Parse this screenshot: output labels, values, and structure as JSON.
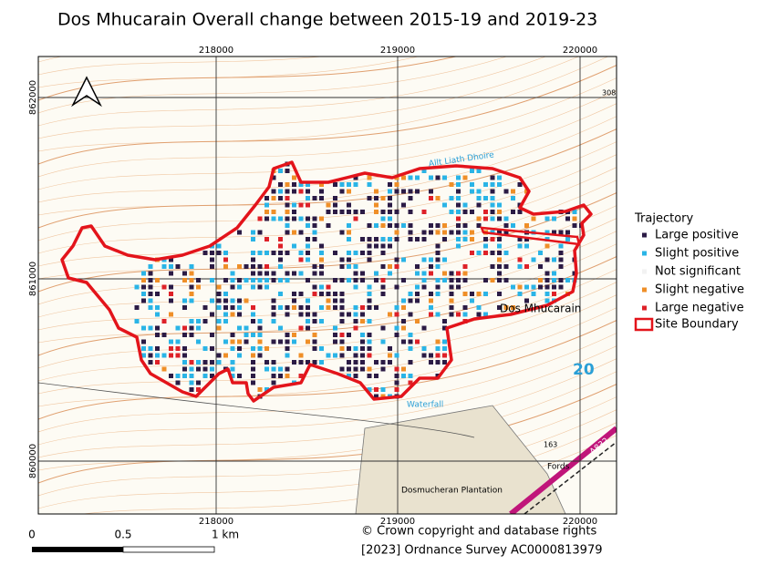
{
  "title": "Dos Mhucarain Overall change between 2015-19 and 2019-23",
  "grid_labels": {
    "top": [
      "218000",
      "219000",
      "220000"
    ],
    "bottom": [
      "218000",
      "219000",
      "220000"
    ],
    "left": [
      "862000",
      "861000",
      "860000"
    ]
  },
  "map_labels": {
    "place": "Dos Mhucarain",
    "stream": "Allt Liath Dhoire",
    "waterfall": "Waterfall",
    "fords": "Fords",
    "plantation": "Dosmucheran Plantation",
    "road": "A832",
    "spot": "308",
    "grid_number": "20",
    "height": "163"
  },
  "legend": {
    "title": "Trajectory",
    "items": [
      {
        "label": "Large positive",
        "color": "#2b1b45"
      },
      {
        "label": "Slight positive",
        "color": "#2ab4e6"
      },
      {
        "label": "Not significant",
        "color": "#f2f2f2"
      },
      {
        "label": "Slight negative",
        "color": "#ef8f28"
      },
      {
        "label": "Large negative",
        "color": "#de2128"
      }
    ],
    "boundary": {
      "label": "Site Boundary",
      "color": "#e3141b"
    }
  },
  "scale_bar": {
    "labels": [
      "0",
      "0.5",
      "1 km"
    ]
  },
  "copyright": [
    "© Crown copyright and database rights",
    "[2023] Ordnance Survey AC0000813979"
  ]
}
